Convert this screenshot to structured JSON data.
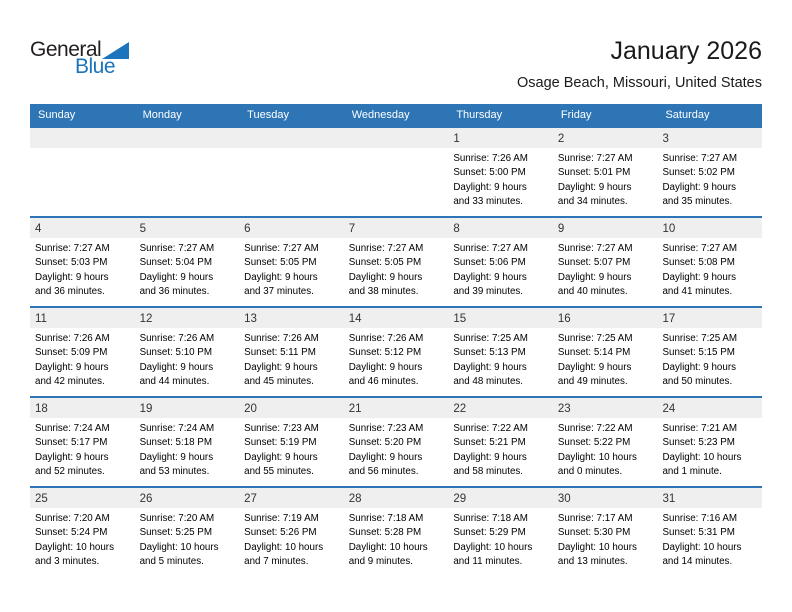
{
  "logo": {
    "general": "General",
    "blue": "Blue"
  },
  "title": "January 2026",
  "subtitle": "Osage Beach, Missouri, United States",
  "weekdays": [
    "Sunday",
    "Monday",
    "Tuesday",
    "Wednesday",
    "Thursday",
    "Friday",
    "Saturday"
  ],
  "colors": {
    "header_bg": "#2e75b6",
    "week_border": "#2e75b6",
    "day_band_bg": "#efefef",
    "logo_blue": "#1c75bc",
    "logo_black": "#231f20"
  },
  "weeks": [
    [
      null,
      null,
      null,
      null,
      {
        "day": "1",
        "lines": [
          "Sunrise: 7:26 AM",
          "Sunset: 5:00 PM",
          "Daylight: 9 hours",
          "and 33 minutes."
        ]
      },
      {
        "day": "2",
        "lines": [
          "Sunrise: 7:27 AM",
          "Sunset: 5:01 PM",
          "Daylight: 9 hours",
          "and 34 minutes."
        ]
      },
      {
        "day": "3",
        "lines": [
          "Sunrise: 7:27 AM",
          "Sunset: 5:02 PM",
          "Daylight: 9 hours",
          "and 35 minutes."
        ]
      }
    ],
    [
      {
        "day": "4",
        "lines": [
          "Sunrise: 7:27 AM",
          "Sunset: 5:03 PM",
          "Daylight: 9 hours",
          "and 36 minutes."
        ]
      },
      {
        "day": "5",
        "lines": [
          "Sunrise: 7:27 AM",
          "Sunset: 5:04 PM",
          "Daylight: 9 hours",
          "and 36 minutes."
        ]
      },
      {
        "day": "6",
        "lines": [
          "Sunrise: 7:27 AM",
          "Sunset: 5:05 PM",
          "Daylight: 9 hours",
          "and 37 minutes."
        ]
      },
      {
        "day": "7",
        "lines": [
          "Sunrise: 7:27 AM",
          "Sunset: 5:05 PM",
          "Daylight: 9 hours",
          "and 38 minutes."
        ]
      },
      {
        "day": "8",
        "lines": [
          "Sunrise: 7:27 AM",
          "Sunset: 5:06 PM",
          "Daylight: 9 hours",
          "and 39 minutes."
        ]
      },
      {
        "day": "9",
        "lines": [
          "Sunrise: 7:27 AM",
          "Sunset: 5:07 PM",
          "Daylight: 9 hours",
          "and 40 minutes."
        ]
      },
      {
        "day": "10",
        "lines": [
          "Sunrise: 7:27 AM",
          "Sunset: 5:08 PM",
          "Daylight: 9 hours",
          "and 41 minutes."
        ]
      }
    ],
    [
      {
        "day": "11",
        "lines": [
          "Sunrise: 7:26 AM",
          "Sunset: 5:09 PM",
          "Daylight: 9 hours",
          "and 42 minutes."
        ]
      },
      {
        "day": "12",
        "lines": [
          "Sunrise: 7:26 AM",
          "Sunset: 5:10 PM",
          "Daylight: 9 hours",
          "and 44 minutes."
        ]
      },
      {
        "day": "13",
        "lines": [
          "Sunrise: 7:26 AM",
          "Sunset: 5:11 PM",
          "Daylight: 9 hours",
          "and 45 minutes."
        ]
      },
      {
        "day": "14",
        "lines": [
          "Sunrise: 7:26 AM",
          "Sunset: 5:12 PM",
          "Daylight: 9 hours",
          "and 46 minutes."
        ]
      },
      {
        "day": "15",
        "lines": [
          "Sunrise: 7:25 AM",
          "Sunset: 5:13 PM",
          "Daylight: 9 hours",
          "and 48 minutes."
        ]
      },
      {
        "day": "16",
        "lines": [
          "Sunrise: 7:25 AM",
          "Sunset: 5:14 PM",
          "Daylight: 9 hours",
          "and 49 minutes."
        ]
      },
      {
        "day": "17",
        "lines": [
          "Sunrise: 7:25 AM",
          "Sunset: 5:15 PM",
          "Daylight: 9 hours",
          "and 50 minutes."
        ]
      }
    ],
    [
      {
        "day": "18",
        "lines": [
          "Sunrise: 7:24 AM",
          "Sunset: 5:17 PM",
          "Daylight: 9 hours",
          "and 52 minutes."
        ]
      },
      {
        "day": "19",
        "lines": [
          "Sunrise: 7:24 AM",
          "Sunset: 5:18 PM",
          "Daylight: 9 hours",
          "and 53 minutes."
        ]
      },
      {
        "day": "20",
        "lines": [
          "Sunrise: 7:23 AM",
          "Sunset: 5:19 PM",
          "Daylight: 9 hours",
          "and 55 minutes."
        ]
      },
      {
        "day": "21",
        "lines": [
          "Sunrise: 7:23 AM",
          "Sunset: 5:20 PM",
          "Daylight: 9 hours",
          "and 56 minutes."
        ]
      },
      {
        "day": "22",
        "lines": [
          "Sunrise: 7:22 AM",
          "Sunset: 5:21 PM",
          "Daylight: 9 hours",
          "and 58 minutes."
        ]
      },
      {
        "day": "23",
        "lines": [
          "Sunrise: 7:22 AM",
          "Sunset: 5:22 PM",
          "Daylight: 10 hours",
          "and 0 minutes."
        ]
      },
      {
        "day": "24",
        "lines": [
          "Sunrise: 7:21 AM",
          "Sunset: 5:23 PM",
          "Daylight: 10 hours",
          "and 1 minute."
        ]
      }
    ],
    [
      {
        "day": "25",
        "lines": [
          "Sunrise: 7:20 AM",
          "Sunset: 5:24 PM",
          "Daylight: 10 hours",
          "and 3 minutes."
        ]
      },
      {
        "day": "26",
        "lines": [
          "Sunrise: 7:20 AM",
          "Sunset: 5:25 PM",
          "Daylight: 10 hours",
          "and 5 minutes."
        ]
      },
      {
        "day": "27",
        "lines": [
          "Sunrise: 7:19 AM",
          "Sunset: 5:26 PM",
          "Daylight: 10 hours",
          "and 7 minutes."
        ]
      },
      {
        "day": "28",
        "lines": [
          "Sunrise: 7:18 AM",
          "Sunset: 5:28 PM",
          "Daylight: 10 hours",
          "and 9 minutes."
        ]
      },
      {
        "day": "29",
        "lines": [
          "Sunrise: 7:18 AM",
          "Sunset: 5:29 PM",
          "Daylight: 10 hours",
          "and 11 minutes."
        ]
      },
      {
        "day": "30",
        "lines": [
          "Sunrise: 7:17 AM",
          "Sunset: 5:30 PM",
          "Daylight: 10 hours",
          "and 13 minutes."
        ]
      },
      {
        "day": "31",
        "lines": [
          "Sunrise: 7:16 AM",
          "Sunset: 5:31 PM",
          "Daylight: 10 hours",
          "and 14 minutes."
        ]
      }
    ]
  ]
}
